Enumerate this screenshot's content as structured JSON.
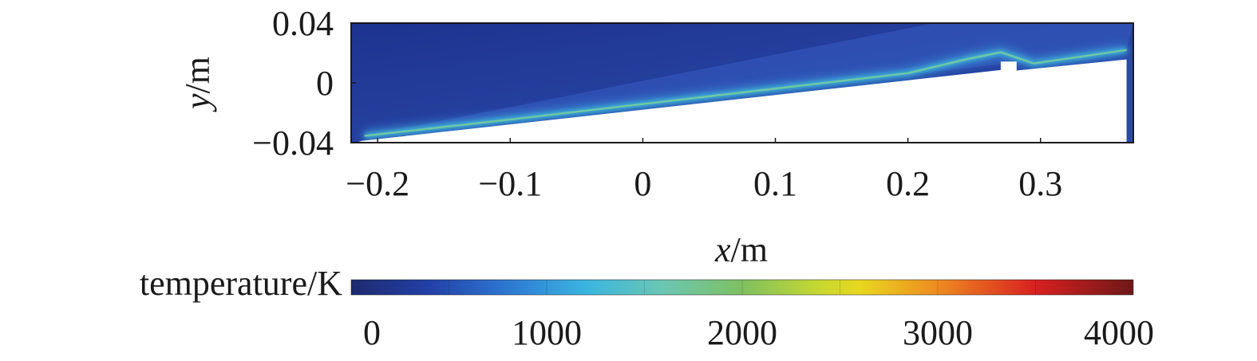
{
  "chart_data": {
    "type": "heatmap",
    "title": "",
    "xlabel": {
      "var": "x",
      "unit": "/m"
    },
    "ylabel": {
      "var": "y",
      "unit": "/m"
    },
    "xlim": [
      -0.22,
      0.37
    ],
    "ylim": [
      -0.04,
      0.04
    ],
    "x_ticks": [
      -0.2,
      -0.1,
      0,
      0.1,
      0.2,
      0.3
    ],
    "x_tick_labels": [
      "−0.2",
      "−0.1",
      "0",
      "0.1",
      "0.2",
      "0.3"
    ],
    "y_ticks": [
      0.04,
      0,
      -0.04
    ],
    "y_tick_labels": [
      "0.04",
      "0",
      "−0.04"
    ],
    "wall_profile": [
      {
        "x": -0.212,
        "y": -0.0388
      },
      {
        "x": 0.27,
        "y": 0.0086
      },
      {
        "x": 0.27,
        "y": 0.0143
      },
      {
        "x": 0.282,
        "y": 0.0143
      },
      {
        "x": 0.282,
        "y": 0.0083
      },
      {
        "x": 0.365,
        "y": 0.0157
      },
      {
        "x": 0.365,
        "y": -0.04
      }
    ],
    "hot_layer": [
      {
        "x": -0.21,
        "y": -0.0355
      },
      {
        "x": -0.1,
        "y": -0.0245
      },
      {
        "x": 0.05,
        "y": -0.009
      },
      {
        "x": 0.2,
        "y": 0.0065
      },
      {
        "x": 0.245,
        "y": 0.016
      },
      {
        "x": 0.27,
        "y": 0.0205
      },
      {
        "x": 0.295,
        "y": 0.013
      },
      {
        "x": 0.365,
        "y": 0.022
      }
    ],
    "colorbar": {
      "label": "temperature/K",
      "range": [
        0,
        4000
      ],
      "ticks": [
        0,
        1000,
        2000,
        3000,
        4000
      ],
      "tick_labels": [
        "0",
        "1000",
        "2000",
        "3000",
        "4000"
      ],
      "colormap": [
        {
          "value": 0,
          "color": "#1e2a6e"
        },
        {
          "value": 400,
          "color": "#2240a8"
        },
        {
          "value": 800,
          "color": "#2e78d2"
        },
        {
          "value": 1200,
          "color": "#3bb5e0"
        },
        {
          "value": 1600,
          "color": "#6cc6b2"
        },
        {
          "value": 2000,
          "color": "#7ec060"
        },
        {
          "value": 2400,
          "color": "#c8d830"
        },
        {
          "value": 2600,
          "color": "#e8d820"
        },
        {
          "value": 3000,
          "color": "#ee8a20"
        },
        {
          "value": 3500,
          "color": "#d82020"
        },
        {
          "value": 4000,
          "color": "#6e1818"
        }
      ]
    },
    "background_color": "#2b46a6",
    "grid": false
  }
}
